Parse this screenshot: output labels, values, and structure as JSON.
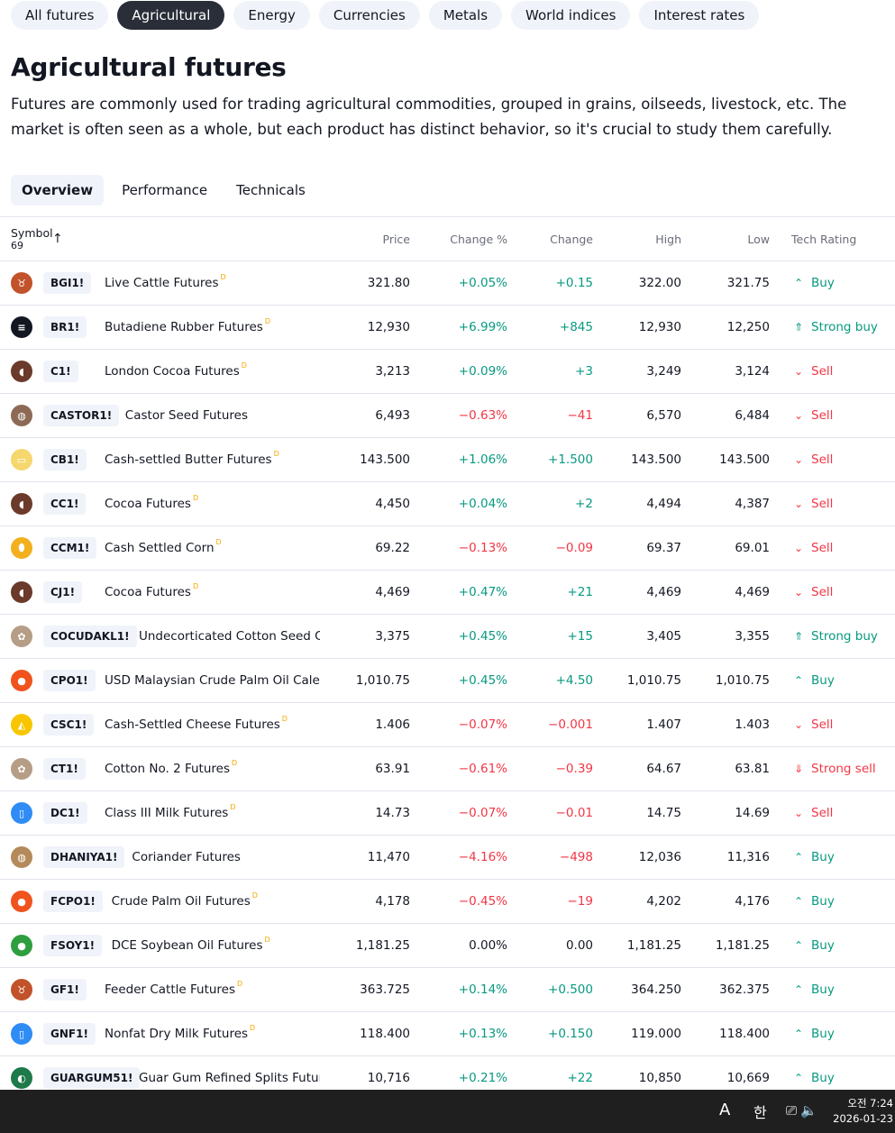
{
  "category_tabs": [
    "All futures",
    "Agricultural",
    "Energy",
    "Currencies",
    "Metals",
    "World indices",
    "Interest rates"
  ],
  "active_category": 1,
  "page_title": "Agricultural futures",
  "description": "Futures are commonly used for trading agricultural commodities, grouped in grains, oilseeds, livestock, etc. The market is often seen as a whole, but each product has distinct behavior, so it's crucial to study them carefully.",
  "view_tabs": [
    "Overview",
    "Performance",
    "Technicals"
  ],
  "active_view": 0,
  "table": {
    "headers": {
      "symbol": "Symbol",
      "count": "69",
      "price": "Price",
      "change_pct": "Change %",
      "change": "Change",
      "high": "High",
      "low": "Low",
      "rating": "Tech Rating"
    },
    "delayed_marker": "D",
    "rows": [
      {
        "ticker": "BGI1!",
        "name": "Live Cattle Futures",
        "delayed": true,
        "price": "321.80",
        "change_pct": "+0.05%",
        "change": "+0.15",
        "high": "322.00",
        "low": "321.75",
        "rating": "Buy",
        "dir": "pos",
        "rdir": "buy",
        "logo_color": "#c1522a",
        "logo_icon": "cattle-icon",
        "glyph": "♉"
      },
      {
        "ticker": "BR1!",
        "name": "Butadiene Rubber Futures",
        "delayed": true,
        "price": "12,930",
        "change_pct": "+6.99%",
        "change": "+845",
        "high": "12,930",
        "low": "12,250",
        "rating": "Strong buy",
        "dir": "pos",
        "rdir": "strong-buy",
        "logo_color": "#131722",
        "logo_icon": "rubber-icon",
        "glyph": "≡"
      },
      {
        "ticker": "C1!",
        "name": "London Cocoa Futures",
        "delayed": true,
        "price": "3,213",
        "change_pct": "+0.09%",
        "change": "+3",
        "high": "3,249",
        "low": "3,124",
        "rating": "Sell",
        "dir": "pos",
        "rdir": "sell",
        "logo_color": "#6b3a2a",
        "logo_icon": "cocoa-icon",
        "glyph": "◖"
      },
      {
        "ticker": "CASTOR1!",
        "name": "Castor Seed Futures",
        "delayed": false,
        "price": "6,493",
        "change_pct": "−0.63%",
        "change": "−41",
        "high": "6,570",
        "low": "6,484",
        "rating": "Sell",
        "dir": "neg",
        "rdir": "sell",
        "logo_color": "#8c6a55",
        "logo_icon": "seed-icon",
        "glyph": "◍"
      },
      {
        "ticker": "CB1!",
        "name": "Cash-settled Butter Futures",
        "delayed": true,
        "price": "143.500",
        "change_pct": "+1.06%",
        "change": "+1.500",
        "high": "143.500",
        "low": "143.500",
        "rating": "Sell",
        "dir": "pos",
        "rdir": "sell",
        "logo_color": "#f5d76e",
        "logo_icon": "butter-icon",
        "glyph": "▭"
      },
      {
        "ticker": "CC1!",
        "name": "Cocoa Futures",
        "delayed": true,
        "price": "4,450",
        "change_pct": "+0.04%",
        "change": "+2",
        "high": "4,494",
        "low": "4,387",
        "rating": "Sell",
        "dir": "pos",
        "rdir": "sell",
        "logo_color": "#6b3a2a",
        "logo_icon": "cocoa-icon",
        "glyph": "◖"
      },
      {
        "ticker": "CCM1!",
        "name": "Cash Settled Corn",
        "delayed": true,
        "price": "69.22",
        "change_pct": "−0.13%",
        "change": "−0.09",
        "high": "69.37",
        "low": "69.01",
        "rating": "Sell",
        "dir": "neg",
        "rdir": "sell",
        "logo_color": "#f2b01e",
        "logo_icon": "corn-icon",
        "glyph": "⬮"
      },
      {
        "ticker": "CJ1!",
        "name": "Cocoa Futures",
        "delayed": true,
        "price": "4,469",
        "change_pct": "+0.47%",
        "change": "+21",
        "high": "4,469",
        "low": "4,469",
        "rating": "Sell",
        "dir": "pos",
        "rdir": "sell",
        "logo_color": "#6b3a2a",
        "logo_icon": "cocoa-icon",
        "glyph": "◖"
      },
      {
        "ticker": "COCUDAKL1!",
        "name": "Undecorticated Cotton Seed Oi…",
        "delayed": false,
        "price": "3,375",
        "change_pct": "+0.45%",
        "change": "+15",
        "high": "3,405",
        "low": "3,355",
        "rating": "Strong buy",
        "dir": "pos",
        "rdir": "strong-buy",
        "logo_color": "#b59d86",
        "logo_icon": "cotton-icon",
        "glyph": "✿"
      },
      {
        "ticker": "CPO1!",
        "name": "USD Malaysian Crude Palm Oil Cale…",
        "delayed": true,
        "price": "1,010.75",
        "change_pct": "+0.45%",
        "change": "+4.50",
        "high": "1,010.75",
        "low": "1,010.75",
        "rating": "Buy",
        "dir": "pos",
        "rdir": "buy",
        "logo_color": "#f0531c",
        "logo_icon": "oil-drop-icon",
        "glyph": "●"
      },
      {
        "ticker": "CSC1!",
        "name": "Cash-Settled Cheese Futures",
        "delayed": true,
        "price": "1.406",
        "change_pct": "−0.07%",
        "change": "−0.001",
        "high": "1.407",
        "low": "1.403",
        "rating": "Sell",
        "dir": "neg",
        "rdir": "sell",
        "logo_color": "#f7c600",
        "logo_icon": "cheese-icon",
        "glyph": "◭"
      },
      {
        "ticker": "CT1!",
        "name": "Cotton No. 2 Futures",
        "delayed": true,
        "price": "63.91",
        "change_pct": "−0.61%",
        "change": "−0.39",
        "high": "64.67",
        "low": "63.81",
        "rating": "Strong sell",
        "dir": "neg",
        "rdir": "strong-sell",
        "logo_color": "#b59d86",
        "logo_icon": "cotton-icon",
        "glyph": "✿"
      },
      {
        "ticker": "DC1!",
        "name": "Class III Milk Futures",
        "delayed": true,
        "price": "14.73",
        "change_pct": "−0.07%",
        "change": "−0.01",
        "high": "14.75",
        "low": "14.69",
        "rating": "Sell",
        "dir": "neg",
        "rdir": "sell",
        "logo_color": "#2f8cf5",
        "logo_icon": "milk-icon",
        "glyph": "▯"
      },
      {
        "ticker": "DHANIYA1!",
        "name": "Coriander Futures",
        "delayed": false,
        "price": "11,470",
        "change_pct": "−4.16%",
        "change": "−498",
        "high": "12,036",
        "low": "11,316",
        "rating": "Buy",
        "dir": "neg",
        "rdir": "buy",
        "logo_color": "#b58a5a",
        "logo_icon": "seed-icon",
        "glyph": "◍"
      },
      {
        "ticker": "FCPO1!",
        "name": "Crude Palm Oil Futures",
        "delayed": true,
        "price": "4,178",
        "change_pct": "−0.45%",
        "change": "−19",
        "high": "4,202",
        "low": "4,176",
        "rating": "Buy",
        "dir": "neg",
        "rdir": "buy",
        "logo_color": "#f0531c",
        "logo_icon": "oil-drop-icon",
        "glyph": "●"
      },
      {
        "ticker": "FSOY1!",
        "name": "DCE Soybean Oil Futures",
        "delayed": true,
        "price": "1,181.25",
        "change_pct": "0.00%",
        "change": "0.00",
        "high": "1,181.25",
        "low": "1,181.25",
        "rating": "Buy",
        "dir": "neu",
        "rdir": "buy",
        "logo_color": "#2e9e3e",
        "logo_icon": "oil-drop-icon",
        "glyph": "●"
      },
      {
        "ticker": "GF1!",
        "name": "Feeder Cattle Futures",
        "delayed": true,
        "price": "363.725",
        "change_pct": "+0.14%",
        "change": "+0.500",
        "high": "364.250",
        "low": "362.375",
        "rating": "Buy",
        "dir": "pos",
        "rdir": "buy",
        "logo_color": "#c1522a",
        "logo_icon": "cattle-icon",
        "glyph": "♉"
      },
      {
        "ticker": "GNF1!",
        "name": "Nonfat Dry Milk Futures",
        "delayed": true,
        "price": "118.400",
        "change_pct": "+0.13%",
        "change": "+0.150",
        "high": "119.000",
        "low": "118.400",
        "rating": "Buy",
        "dir": "pos",
        "rdir": "buy",
        "logo_color": "#2f8cf5",
        "logo_icon": "milk-icon",
        "glyph": "▯"
      },
      {
        "ticker": "GUARGUM51!",
        "name": "Guar Gum Refined Splits Futures",
        "delayed": false,
        "price": "10,716",
        "change_pct": "+0.21%",
        "change": "+22",
        "high": "10,850",
        "low": "10,669",
        "rating": "Buy",
        "dir": "pos",
        "rdir": "buy",
        "logo_color": "#1e7a4a",
        "logo_icon": "guar-icon",
        "glyph": "◐"
      }
    ]
  },
  "taskbar": {
    "ime_mode": "A",
    "ime_lang": "한",
    "time": "오전 7:24",
    "date": "2026-01-23"
  }
}
